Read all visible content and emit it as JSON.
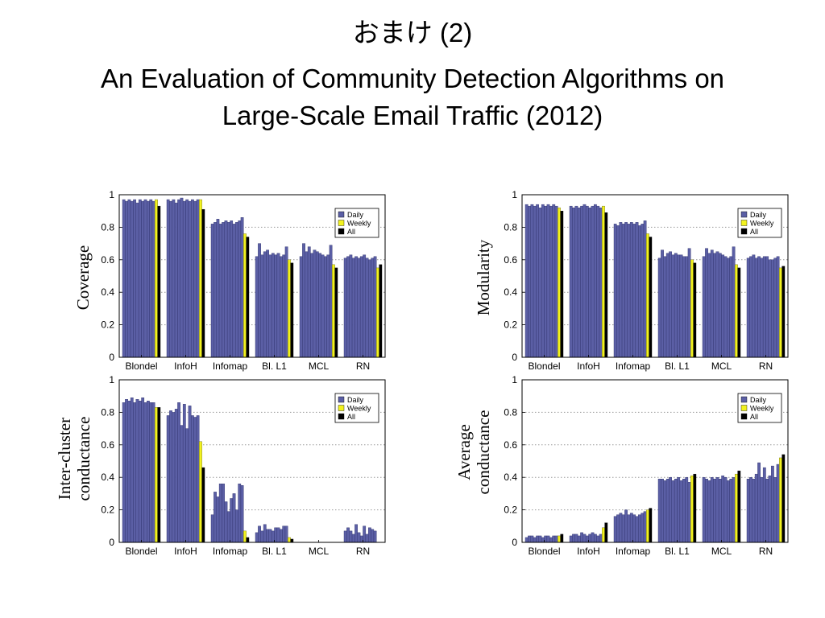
{
  "slide": {
    "title_line1": "おまけ (2)",
    "title_line2": "An Evaluation of Community Detection Algorithms on",
    "title_line3": "Large-Scale Email Traffic (2012)"
  },
  "colors": {
    "daily": "#5b5fa5",
    "weekly": "#f2f21f",
    "all": "#000000"
  },
  "chart_data": [
    {
      "type": "bar",
      "ylabel": "Coverage",
      "categories": [
        "Blondel",
        "InfoH",
        "Infomap",
        "Bl. L1",
        "MCL",
        "RN"
      ],
      "ylim": [
        0,
        1
      ],
      "yticks": [
        0,
        0.2,
        0.4,
        0.6,
        0.8,
        1
      ],
      "grid": true,
      "legend_position": "top-right",
      "legend": [
        "Daily",
        "Weekly",
        "All"
      ],
      "series": [
        {
          "name": "Daily",
          "values": [
            [
              0.97,
              0.96,
              0.97,
              0.96,
              0.97,
              0.95,
              0.97,
              0.96,
              0.97,
              0.96,
              0.97,
              0.96
            ],
            [
              0.97,
              0.96,
              0.97,
              0.95,
              0.97,
              0.98,
              0.96,
              0.97,
              0.96,
              0.97,
              0.96,
              0.97
            ],
            [
              0.82,
              0.83,
              0.85,
              0.82,
              0.83,
              0.84,
              0.83,
              0.84,
              0.82,
              0.83,
              0.84,
              0.86
            ],
            [
              0.62,
              0.7,
              0.63,
              0.65,
              0.66,
              0.63,
              0.64,
              0.63,
              0.64,
              0.62,
              0.63,
              0.68
            ],
            [
              0.62,
              0.7,
              0.65,
              0.68,
              0.64,
              0.66,
              0.65,
              0.64,
              0.63,
              0.62,
              0.63,
              0.69
            ],
            [
              0.61,
              0.62,
              0.63,
              0.61,
              0.62,
              0.61,
              0.62,
              0.63,
              0.61,
              0.6,
              0.61,
              0.62
            ]
          ]
        },
        {
          "name": "Weekly",
          "values": [
            0.97,
            0.97,
            0.76,
            0.6,
            0.57,
            0.55
          ]
        },
        {
          "name": "All",
          "values": [
            0.93,
            0.91,
            0.74,
            0.58,
            0.55,
            0.57
          ]
        }
      ]
    },
    {
      "type": "bar",
      "ylabel": "Modularity",
      "categories": [
        "Blondel",
        "InfoH",
        "Infomap",
        "Bl. L1",
        "MCL",
        "RN"
      ],
      "ylim": [
        0,
        1
      ],
      "yticks": [
        0,
        0.2,
        0.4,
        0.6,
        0.8,
        1
      ],
      "grid": true,
      "legend_position": "top-right",
      "legend": [
        "Daily",
        "Weekly",
        "All"
      ],
      "series": [
        {
          "name": "Daily",
          "values": [
            [
              0.94,
              0.93,
              0.94,
              0.93,
              0.94,
              0.92,
              0.94,
              0.93,
              0.94,
              0.93,
              0.94,
              0.93
            ],
            [
              0.93,
              0.92,
              0.93,
              0.92,
              0.93,
              0.94,
              0.93,
              0.92,
              0.93,
              0.94,
              0.93,
              0.92
            ],
            [
              0.82,
              0.81,
              0.83,
              0.82,
              0.83,
              0.82,
              0.83,
              0.82,
              0.83,
              0.81,
              0.82,
              0.84
            ],
            [
              0.61,
              0.66,
              0.62,
              0.64,
              0.65,
              0.63,
              0.64,
              0.63,
              0.63,
              0.62,
              0.62,
              0.67
            ],
            [
              0.62,
              0.67,
              0.64,
              0.66,
              0.64,
              0.65,
              0.64,
              0.63,
              0.62,
              0.61,
              0.62,
              0.68
            ],
            [
              0.61,
              0.62,
              0.63,
              0.61,
              0.62,
              0.61,
              0.62,
              0.62,
              0.6,
              0.6,
              0.61,
              0.62
            ]
          ]
        },
        {
          "name": "Weekly",
          "values": [
            0.92,
            0.93,
            0.76,
            0.6,
            0.57,
            0.55
          ]
        },
        {
          "name": "All",
          "values": [
            0.9,
            0.89,
            0.74,
            0.58,
            0.55,
            0.56
          ]
        }
      ]
    },
    {
      "type": "bar",
      "ylabel": "Inter-cluster conductance",
      "categories": [
        "Blondel",
        "InfoH",
        "Infomap",
        "Bl. L1",
        "MCL",
        "RN"
      ],
      "ylim": [
        0,
        1
      ],
      "yticks": [
        0,
        0.2,
        0.4,
        0.6,
        0.8,
        1
      ],
      "grid": true,
      "legend_position": "top-right",
      "legend": [
        "Daily",
        "Weekly",
        "All"
      ],
      "series": [
        {
          "name": "Daily",
          "values": [
            [
              0.86,
              0.88,
              0.87,
              0.89,
              0.86,
              0.88,
              0.87,
              0.89,
              0.86,
              0.87,
              0.86,
              0.86
            ],
            [
              0.78,
              0.81,
              0.8,
              0.82,
              0.86,
              0.72,
              0.85,
              0.7,
              0.84,
              0.78,
              0.77,
              0.78
            ],
            [
              0.17,
              0.31,
              0.28,
              0.36,
              0.36,
              0.25,
              0.19,
              0.27,
              0.3,
              0.2,
              0.36,
              0.35
            ],
            [
              0.06,
              0.1,
              0.07,
              0.11,
              0.08,
              0.08,
              0.07,
              0.09,
              0.09,
              0.08,
              0.1,
              0.1
            ],
            [
              0.0,
              0.0,
              0.0,
              0.0,
              0.0,
              0.0,
              0.0,
              0.0,
              0.0,
              0.0,
              0.0,
              0.0
            ],
            [
              0.07,
              0.09,
              0.07,
              0.05,
              0.11,
              0.06,
              0.04,
              0.1,
              0.05,
              0.09,
              0.08,
              0.07
            ]
          ]
        },
        {
          "name": "Weekly",
          "values": [
            0.83,
            0.62,
            0.07,
            0.03,
            0.0,
            0.0
          ]
        },
        {
          "name": "All",
          "values": [
            0.83,
            0.46,
            0.03,
            0.02,
            0.0,
            0.0
          ]
        }
      ]
    },
    {
      "type": "bar",
      "ylabel": "Average conductance",
      "categories": [
        "Blondel",
        "InfoH",
        "Infomap",
        "Bl. L1",
        "MCL",
        "RN"
      ],
      "ylim": [
        0,
        1
      ],
      "yticks": [
        0,
        0.2,
        0.4,
        0.6,
        0.8,
        1
      ],
      "grid": true,
      "legend_position": "top-right",
      "legend": [
        "Daily",
        "Weekly",
        "All"
      ],
      "series": [
        {
          "name": "Daily",
          "values": [
            [
              0.03,
              0.04,
              0.04,
              0.03,
              0.04,
              0.04,
              0.03,
              0.04,
              0.04,
              0.03,
              0.04,
              0.04
            ],
            [
              0.04,
              0.05,
              0.05,
              0.04,
              0.06,
              0.05,
              0.04,
              0.05,
              0.06,
              0.05,
              0.04,
              0.05
            ],
            [
              0.16,
              0.17,
              0.18,
              0.17,
              0.2,
              0.17,
              0.18,
              0.17,
              0.16,
              0.17,
              0.18,
              0.19
            ],
            [
              0.39,
              0.39,
              0.38,
              0.39,
              0.4,
              0.38,
              0.39,
              0.4,
              0.38,
              0.39,
              0.4,
              0.37
            ],
            [
              0.4,
              0.39,
              0.38,
              0.4,
              0.39,
              0.4,
              0.39,
              0.41,
              0.4,
              0.38,
              0.39,
              0.4
            ],
            [
              0.39,
              0.4,
              0.39,
              0.42,
              0.49,
              0.4,
              0.46,
              0.39,
              0.41,
              0.47,
              0.4,
              0.48
            ]
          ]
        },
        {
          "name": "Weekly",
          "values": [
            0.04,
            0.09,
            0.2,
            0.41,
            0.42,
            0.52
          ]
        },
        {
          "name": "All",
          "values": [
            0.05,
            0.12,
            0.21,
            0.42,
            0.44,
            0.54
          ]
        }
      ]
    }
  ]
}
